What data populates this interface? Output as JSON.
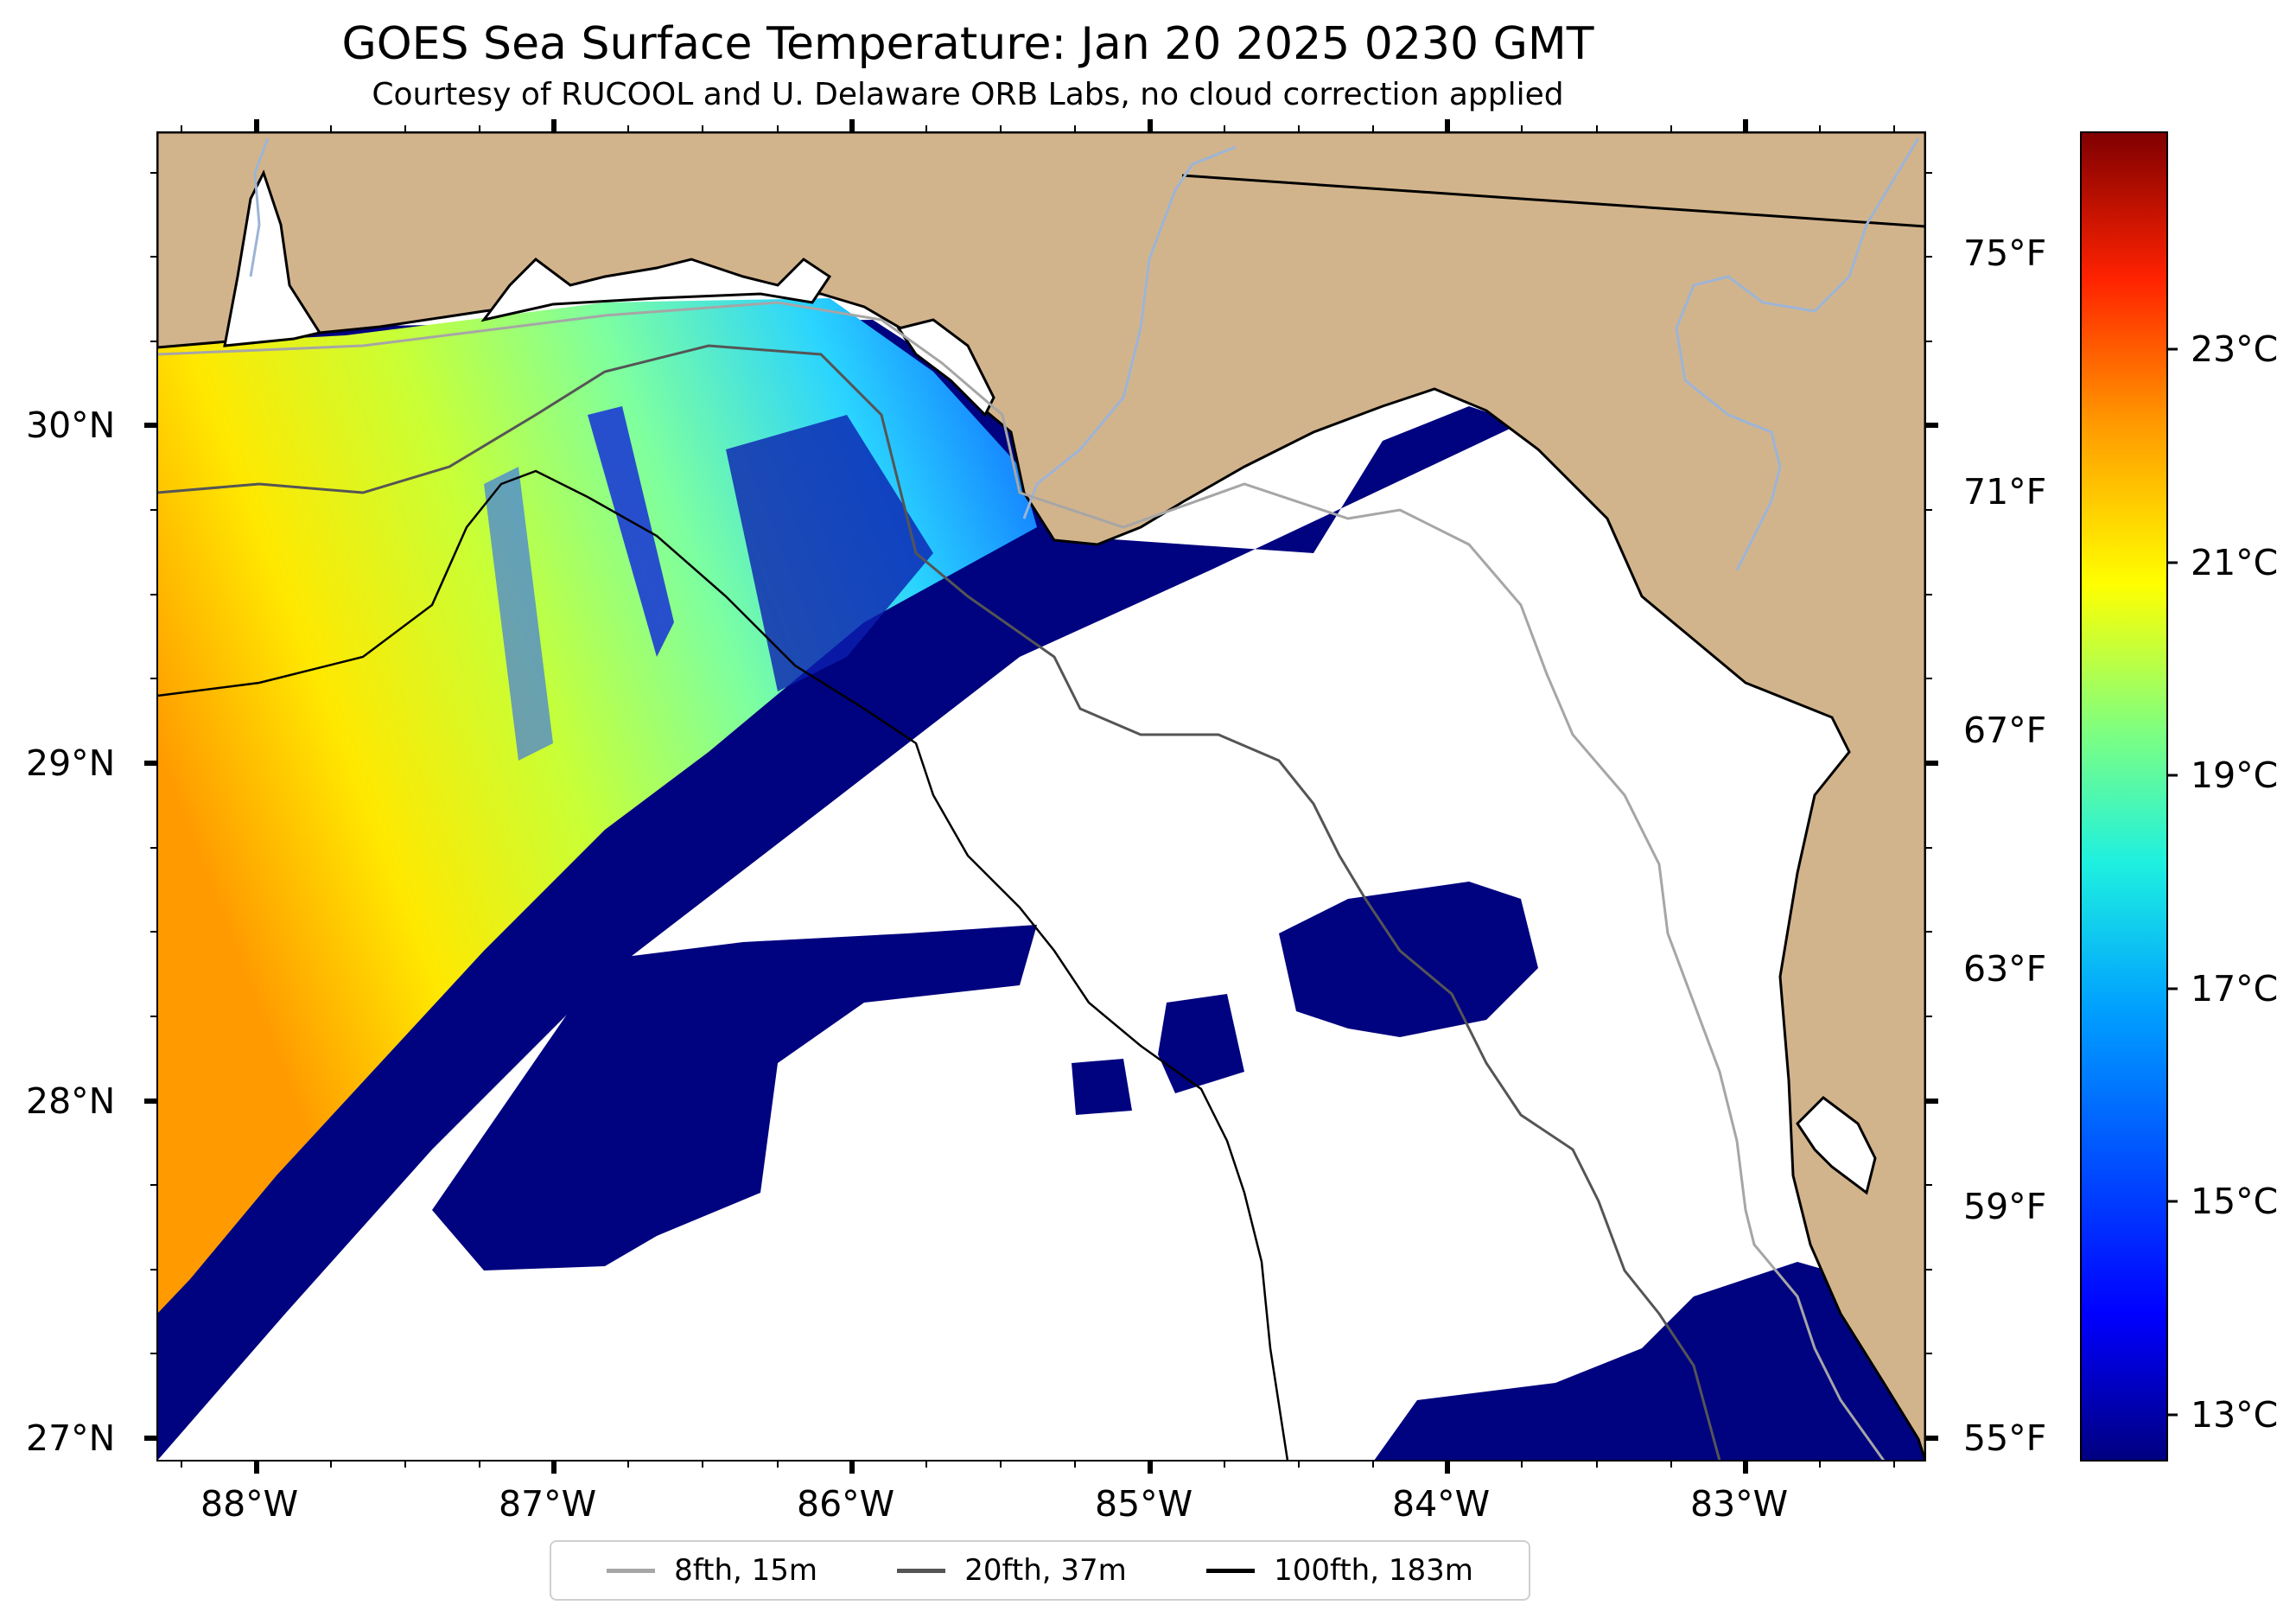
{
  "header": {
    "title": "GOES Sea Surface Temperature: Jan 20 2025 0230 GMT",
    "subtitle": "Courtesy of RUCOOL and U. Delaware ORB Labs, no cloud correction applied"
  },
  "map": {
    "lat_ticks": [
      "30°N",
      "29°N",
      "28°N",
      "27°N"
    ],
    "lon_ticks": [
      "88°W",
      "87°W",
      "86°W",
      "85°W",
      "84°W",
      "83°W"
    ],
    "fahrenheit_ticks": [
      "75°F",
      "71°F",
      "67°F",
      "63°F",
      "59°F",
      "55°F"
    ],
    "colors": {
      "land": "#d2b48c",
      "cloud_mask": "#ffffff",
      "river": "#9db4d6",
      "coastline": "#000000"
    }
  },
  "colorbar": {
    "celsius_ticks": [
      "23°C",
      "21°C",
      "19°C",
      "17°C",
      "15°C",
      "13°C"
    ],
    "colormap": "jet",
    "colors": [
      "#00007f",
      "#0000ff",
      "#007fff",
      "#00ffff",
      "#7fff7f",
      "#ffff00",
      "#ff7f00",
      "#ff0000",
      "#7f0000"
    ]
  },
  "legend": {
    "items": [
      {
        "label": "8fth, 15m",
        "color": "#a6a6a6"
      },
      {
        "label": "20fth, 37m",
        "color": "#555555"
      },
      {
        "label": "100fth, 183m",
        "color": "#000000"
      }
    ]
  }
}
